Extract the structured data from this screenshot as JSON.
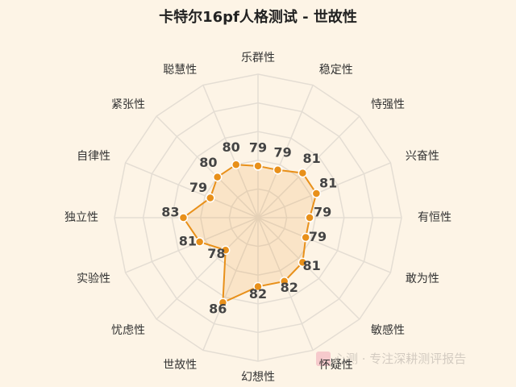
{
  "chart_data": {
    "type": "radar",
    "title": "卡特尔16pf人格测试 - 世故性",
    "categories": [
      "乐群性",
      "稳定性",
      "恃强性",
      "兴奋性",
      "有恒性",
      "敢为性",
      "敏感性",
      "怀疑性",
      "幻想性",
      "世故性",
      "忧虑性",
      "实验性",
      "独立性",
      "自律性",
      "紧张性",
      "聪慧性"
    ],
    "values": [
      79,
      79,
      81,
      81,
      79,
      79,
      81,
      82,
      82,
      86,
      78,
      81,
      83,
      79,
      80,
      80
    ],
    "color": "#e8901a",
    "rlim": [
      70,
      95
    ],
    "rticks": [
      75,
      80,
      85,
      90,
      95
    ],
    "grid": true,
    "watermark": "心测 · 专注深耕测评报告"
  }
}
